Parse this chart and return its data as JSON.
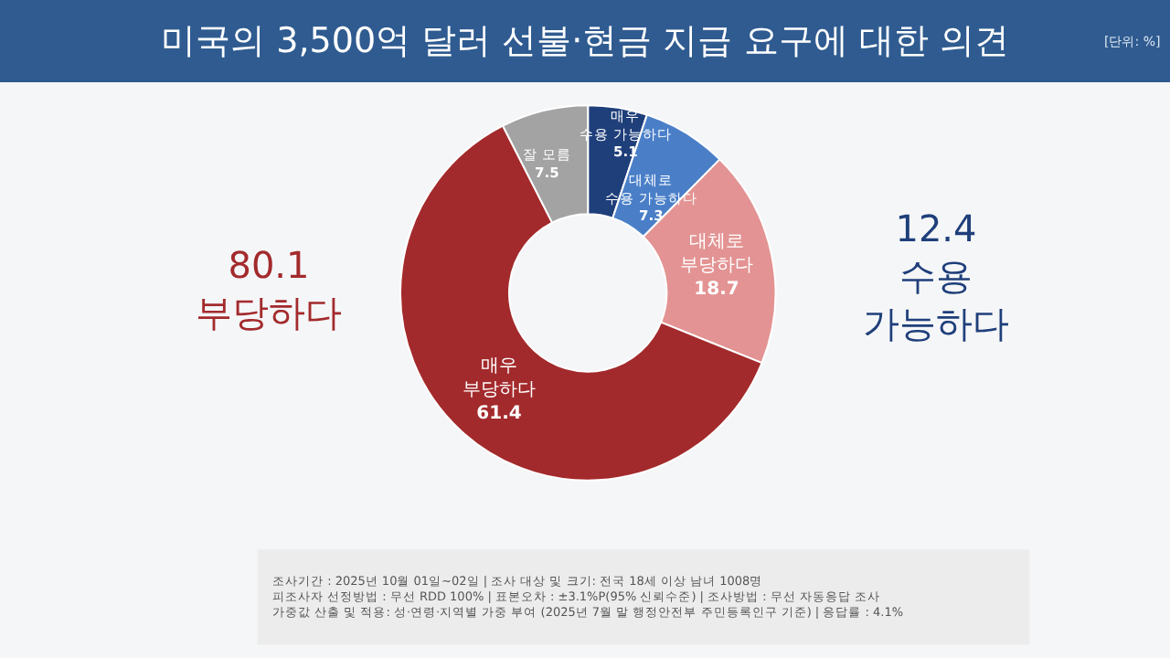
{
  "chart_data": {
    "type": "donut",
    "title": "미국의 3,500억 달러 선불·현금 지급 요구에 대한 의견",
    "categories": [
      "매우\n수용 가능하다",
      "대체로\n수용 가능하다",
      "대체로\n부당하다",
      "매우\n부당하다",
      "잘 모름"
    ],
    "values": [
      5.1,
      7.3,
      18.7,
      61.4,
      7.5
    ],
    "colors": [
      "#1f3f7a",
      "#4a7fc8",
      "#e39393",
      "#a32a2c",
      "#a3a3a3"
    ],
    "data_labels": true,
    "legend": false,
    "annotations": [
      "[단위: %]",
      "12.4\n수용\n가능하다",
      "80.1\n부당하다",
      "조사기간 : 2025년 10월 01일~02일 | 조사 대상 및 크기: 전국 18세 이상 남녀 1008명\n피조사자 선정방법 : 무선 RDD 100% | 표본오차 : ±3.1%P(95% 신뢰수준) | 조사방법 : 무선 자동응답 조사\n가중값 산출 및 적용: 성·연령·지역별 가중 부여 (2025년 7월 말 행정안전부 주민등록인구 기준) | 응답률 : 4.1%"
    ]
  }
}
